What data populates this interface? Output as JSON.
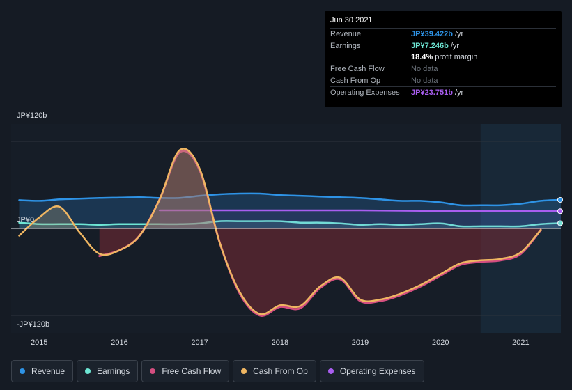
{
  "tooltip": {
    "date": "Jun 30 2021",
    "rows": [
      {
        "label": "Revenue",
        "value": "JP¥39.422b",
        "unit": "/yr",
        "color": "#2e93e6"
      },
      {
        "label": "Earnings",
        "value": "JP¥7.246b",
        "unit": "/yr",
        "color": "#6ee6d4"
      },
      {
        "label": "",
        "value": "18.4%",
        "unit": "profit margin",
        "color": "#ffffff"
      },
      {
        "label": "Free Cash Flow",
        "value": "No data",
        "unit": "",
        "color": "#6c737c"
      },
      {
        "label": "Cash From Op",
        "value": "No data",
        "unit": "",
        "color": "#6c737c"
      },
      {
        "label": "Operating Expenses",
        "value": "JP¥23.751b",
        "unit": "/yr",
        "color": "#a95ef0"
      }
    ]
  },
  "legend": [
    {
      "label": "Revenue",
      "color": "#2e93e6"
    },
    {
      "label": "Earnings",
      "color": "#6ee6d4"
    },
    {
      "label": "Free Cash Flow",
      "color": "#d44e80"
    },
    {
      "label": "Cash From Op",
      "color": "#efb662"
    },
    {
      "label": "Operating Expenses",
      "color": "#a95ef0"
    }
  ],
  "chart_data": {
    "type": "area",
    "title": "",
    "y_unit": "JP¥ billions",
    "ylim": [
      -120,
      120
    ],
    "y_tick_labels": {
      "max": "JP¥120b",
      "zero": "JP¥0",
      "min": "-JP¥120b"
    },
    "xlim": [
      2014.65,
      2021.5
    ],
    "x_ticks": [
      2015,
      2016,
      2017,
      2018,
      2019,
      2020,
      2021
    ],
    "x_tick_labels": [
      "2015",
      "2016",
      "2017",
      "2018",
      "2019",
      "2020",
      "2021"
    ],
    "highlight_start": 2020.5,
    "series": [
      {
        "name": "Revenue",
        "color": "#2e93e6",
        "points": [
          [
            2014.75,
            39
          ],
          [
            2015.0,
            38
          ],
          [
            2015.25,
            40
          ],
          [
            2015.5,
            41
          ],
          [
            2015.75,
            42
          ],
          [
            2016.0,
            42.5
          ],
          [
            2016.25,
            43
          ],
          [
            2016.5,
            42
          ],
          [
            2016.75,
            42
          ],
          [
            2017.0,
            45
          ],
          [
            2017.25,
            47
          ],
          [
            2017.5,
            48
          ],
          [
            2017.75,
            48
          ],
          [
            2018.0,
            46
          ],
          [
            2018.25,
            45
          ],
          [
            2018.5,
            44
          ],
          [
            2018.75,
            43
          ],
          [
            2019.0,
            42
          ],
          [
            2019.25,
            40
          ],
          [
            2019.5,
            38
          ],
          [
            2019.75,
            38
          ],
          [
            2020.0,
            36
          ],
          [
            2020.25,
            32
          ],
          [
            2020.5,
            32
          ],
          [
            2020.75,
            32
          ],
          [
            2021.0,
            34
          ],
          [
            2021.25,
            38
          ],
          [
            2021.5,
            39.4
          ]
        ]
      },
      {
        "name": "Earnings",
        "color": "#6ee6d4",
        "points": [
          [
            2014.75,
            8
          ],
          [
            2015.0,
            6
          ],
          [
            2015.25,
            6
          ],
          [
            2015.5,
            6
          ],
          [
            2015.75,
            5
          ],
          [
            2016.0,
            6
          ],
          [
            2016.25,
            6
          ],
          [
            2016.5,
            6
          ],
          [
            2016.75,
            6
          ],
          [
            2017.0,
            7
          ],
          [
            2017.25,
            10
          ],
          [
            2017.5,
            10
          ],
          [
            2017.75,
            10
          ],
          [
            2018.0,
            10
          ],
          [
            2018.25,
            8
          ],
          [
            2018.5,
            8
          ],
          [
            2018.75,
            7
          ],
          [
            2019.0,
            5
          ],
          [
            2019.25,
            6
          ],
          [
            2019.5,
            5
          ],
          [
            2019.75,
            6
          ],
          [
            2020.0,
            7
          ],
          [
            2020.25,
            3
          ],
          [
            2020.5,
            3
          ],
          [
            2020.75,
            3
          ],
          [
            2021.0,
            3
          ],
          [
            2021.25,
            6
          ],
          [
            2021.5,
            7.2
          ]
        ]
      },
      {
        "name": "Free Cash Flow",
        "color": "#d44e80",
        "points": [
          [
            2015.75,
            -38
          ],
          [
            2016.0,
            -30
          ],
          [
            2016.25,
            -10
          ],
          [
            2016.5,
            40
          ],
          [
            2016.75,
            105
          ],
          [
            2017.0,
            80
          ],
          [
            2017.25,
            -20
          ],
          [
            2017.5,
            -90
          ],
          [
            2017.75,
            -120
          ],
          [
            2018.0,
            -108
          ],
          [
            2018.25,
            -110
          ],
          [
            2018.5,
            -82
          ],
          [
            2018.75,
            -70
          ],
          [
            2019.0,
            -100
          ],
          [
            2019.25,
            -100
          ],
          [
            2019.5,
            -92
          ],
          [
            2019.75,
            -80
          ],
          [
            2020.0,
            -65
          ],
          [
            2020.25,
            -50
          ],
          [
            2020.5,
            -46
          ],
          [
            2020.75,
            -44
          ],
          [
            2021.0,
            -35
          ],
          [
            2021.25,
            -2
          ]
        ]
      },
      {
        "name": "Cash From Op",
        "color": "#efb662",
        "points": [
          [
            2014.75,
            -10
          ],
          [
            2015.0,
            15
          ],
          [
            2015.25,
            30
          ],
          [
            2015.5,
            -5
          ],
          [
            2015.75,
            -35
          ],
          [
            2016.0,
            -30
          ],
          [
            2016.25,
            -10
          ],
          [
            2016.5,
            40
          ],
          [
            2016.75,
            108
          ],
          [
            2017.0,
            82
          ],
          [
            2017.25,
            -20
          ],
          [
            2017.5,
            -88
          ],
          [
            2017.75,
            -118
          ],
          [
            2018.0,
            -106
          ],
          [
            2018.25,
            -107
          ],
          [
            2018.5,
            -80
          ],
          [
            2018.75,
            -68
          ],
          [
            2019.0,
            -98
          ],
          [
            2019.25,
            -98
          ],
          [
            2019.5,
            -90
          ],
          [
            2019.75,
            -78
          ],
          [
            2020.0,
            -63
          ],
          [
            2020.25,
            -48
          ],
          [
            2020.5,
            -44
          ],
          [
            2020.75,
            -42
          ],
          [
            2021.0,
            -33
          ],
          [
            2021.25,
            -2
          ]
        ]
      },
      {
        "name": "Operating Expenses",
        "color": "#a95ef0",
        "points": [
          [
            2016.5,
            25
          ],
          [
            2016.75,
            25
          ],
          [
            2017.0,
            25
          ],
          [
            2017.5,
            25
          ],
          [
            2018.0,
            25
          ],
          [
            2018.5,
            25
          ],
          [
            2019.0,
            25
          ],
          [
            2019.5,
            24.5
          ],
          [
            2020.0,
            24
          ],
          [
            2020.5,
            24
          ],
          [
            2021.0,
            23.8
          ],
          [
            2021.5,
            23.75
          ]
        ]
      }
    ]
  }
}
